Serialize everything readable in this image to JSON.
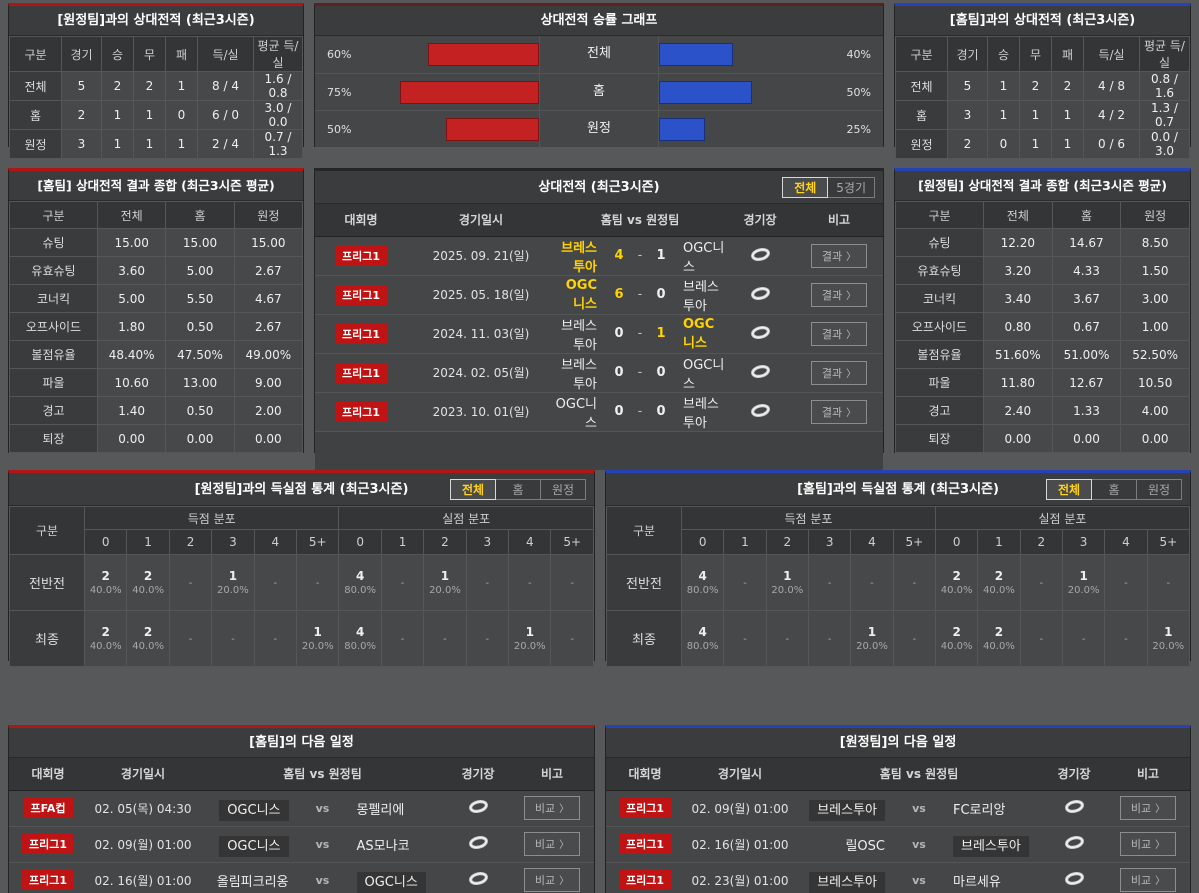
{
  "colors": {
    "red_accent": "#b01616",
    "blue_accent": "#2742b4",
    "red_bar": "#c42222",
    "blue_bar": "#2b52c8",
    "yellow": "#ffd400",
    "badge_red": "#c01414",
    "panel_bg": "#404142",
    "page_bg": "#57585a"
  },
  "h2h_away": {
    "title": "[원정팀]과의 상대전적 (최근3시즌)",
    "headers": [
      "구분",
      "경기",
      "승",
      "무",
      "패",
      "득/실",
      "평균 득/실"
    ],
    "rows": [
      {
        "label": "전체",
        "cells": [
          "5",
          "2",
          "2",
          "1",
          "8 / 4",
          "1.6 / 0.8"
        ]
      },
      {
        "label": "홈",
        "cells": [
          "2",
          "1",
          "1",
          "0",
          "6 / 0",
          "3.0 / 0.0"
        ]
      },
      {
        "label": "원정",
        "cells": [
          "3",
          "1",
          "1",
          "1",
          "2 / 4",
          "0.7 / 1.3"
        ]
      }
    ]
  },
  "winrate_chart": {
    "type": "bar",
    "title": "상대전적 승률 그래프",
    "rows": [
      {
        "label": "전체",
        "left_pct": "60%",
        "left_val": 60,
        "right_pct": "40%",
        "right_val": 40
      },
      {
        "label": "홈",
        "left_pct": "75%",
        "left_val": 75,
        "right_pct": "50%",
        "right_val": 50
      },
      {
        "label": "원정",
        "left_pct": "50%",
        "left_val": 50,
        "right_pct": "25%",
        "right_val": 25
      }
    ]
  },
  "h2h_home": {
    "title": "[홈팀]과의 상대전적 (최근3시즌)",
    "headers": [
      "구분",
      "경기",
      "승",
      "무",
      "패",
      "득/실",
      "평균 득/실"
    ],
    "rows": [
      {
        "label": "전체",
        "cells": [
          "5",
          "1",
          "2",
          "2",
          "4 / 8",
          "0.8 / 1.6"
        ]
      },
      {
        "label": "홈",
        "cells": [
          "3",
          "1",
          "1",
          "1",
          "4 / 2",
          "1.3 / 0.7"
        ]
      },
      {
        "label": "원정",
        "cells": [
          "2",
          "0",
          "1",
          "1",
          "0 / 6",
          "0.0 / 3.0"
        ]
      }
    ]
  },
  "summary_home": {
    "title": "[홈팀] 상대전적 결과 종합 (최근3시즌 평균)",
    "headers": [
      "구분",
      "전체",
      "홈",
      "원정"
    ],
    "rows": [
      {
        "label": "슈팅",
        "cells": [
          "15.00",
          "15.00",
          "15.00"
        ]
      },
      {
        "label": "유효슈팅",
        "cells": [
          "3.60",
          "5.00",
          "2.67"
        ]
      },
      {
        "label": "코너킥",
        "cells": [
          "5.00",
          "5.50",
          "4.67"
        ]
      },
      {
        "label": "오프사이드",
        "cells": [
          "1.80",
          "0.50",
          "2.67"
        ]
      },
      {
        "label": "볼점유율",
        "cells": [
          "48.40%",
          "47.50%",
          "49.00%"
        ]
      },
      {
        "label": "파울",
        "cells": [
          "10.60",
          "13.00",
          "9.00"
        ]
      },
      {
        "label": "경고",
        "cells": [
          "1.40",
          "0.50",
          "2.00"
        ]
      },
      {
        "label": "퇴장",
        "cells": [
          "0.00",
          "0.00",
          "0.00"
        ]
      }
    ]
  },
  "summary_away": {
    "title": "[원정팀] 상대전적 결과 종합 (최근3시즌 평균)",
    "headers": [
      "구분",
      "전체",
      "홈",
      "원정"
    ],
    "rows": [
      {
        "label": "슈팅",
        "cells": [
          "12.20",
          "14.67",
          "8.50"
        ]
      },
      {
        "label": "유효슈팅",
        "cells": [
          "3.20",
          "4.33",
          "1.50"
        ]
      },
      {
        "label": "코너킥",
        "cells": [
          "3.40",
          "3.67",
          "3.00"
        ]
      },
      {
        "label": "오프사이드",
        "cells": [
          "0.80",
          "0.67",
          "1.00"
        ]
      },
      {
        "label": "볼점유율",
        "cells": [
          "51.60%",
          "51.00%",
          "52.50%"
        ]
      },
      {
        "label": "파울",
        "cells": [
          "11.80",
          "12.67",
          "10.50"
        ]
      },
      {
        "label": "경고",
        "cells": [
          "2.40",
          "1.33",
          "4.00"
        ]
      },
      {
        "label": "퇴장",
        "cells": [
          "0.00",
          "0.00",
          "0.00"
        ]
      }
    ]
  },
  "matches": {
    "title": "상대전적 (최근3시즌)",
    "tabs": [
      {
        "label": "전체"
      },
      {
        "label": "5경기"
      }
    ],
    "headers": [
      "대회명",
      "경기일시",
      "홈팀  vs  원정팀",
      "경기장",
      "비고"
    ],
    "result_label": "결과",
    "chevron": "〉",
    "score_sep": "-",
    "rows": [
      {
        "league": "프리그1",
        "date": "2025. 09. 21(일)",
        "home": "브레스투아",
        "score_home": "4",
        "score_away": "1",
        "away": "OGC니스"
      },
      {
        "league": "프리그1",
        "date": "2025. 05. 18(일)",
        "home": "OGC니스",
        "score_home": "6",
        "score_away": "0",
        "away": "브레스투아"
      },
      {
        "league": "프리그1",
        "date": "2024. 11. 03(일)",
        "home": "브레스투아",
        "score_home": "0",
        "score_away": "1",
        "away": "OGC니스"
      },
      {
        "league": "프리그1",
        "date": "2024. 02. 05(월)",
        "home": "브레스투아",
        "score_home": "0",
        "score_away": "0",
        "away": "OGC니스"
      },
      {
        "league": "프리그1",
        "date": "2023. 10. 01(일)",
        "home": "OGC니스",
        "score_home": "0",
        "score_away": "0",
        "away": "브레스투아"
      }
    ]
  },
  "goals_vs_away": {
    "title": "[원정팀]과의 득실점 통계 (최근3시즌)",
    "tabs": [
      "전체",
      "홈",
      "원정"
    ],
    "corner": "구분",
    "group_scored": "득점 분포",
    "group_conceded": "실점 분포",
    "bins": [
      "0",
      "1",
      "2",
      "3",
      "4",
      "5+"
    ],
    "rows": [
      {
        "label": "전반전",
        "scored": [
          {
            "n": "2",
            "p": "40.0%"
          },
          {
            "n": "2",
            "p": "40.0%"
          },
          {
            "n": "",
            "p": "-"
          },
          {
            "n": "1",
            "p": "20.0%"
          },
          {
            "n": "",
            "p": "-"
          },
          {
            "n": "",
            "p": "-"
          }
        ],
        "conceded": [
          {
            "n": "4",
            "p": "80.0%"
          },
          {
            "n": "",
            "p": "-"
          },
          {
            "n": "1",
            "p": "20.0%"
          },
          {
            "n": "",
            "p": "-"
          },
          {
            "n": "",
            "p": "-"
          },
          {
            "n": "",
            "p": "-"
          }
        ]
      },
      {
        "label": "최종",
        "scored": [
          {
            "n": "2",
            "p": "40.0%"
          },
          {
            "n": "2",
            "p": "40.0%"
          },
          {
            "n": "",
            "p": "-"
          },
          {
            "n": "",
            "p": "-"
          },
          {
            "n": "",
            "p": "-"
          },
          {
            "n": "1",
            "p": "20.0%"
          }
        ],
        "conceded": [
          {
            "n": "4",
            "p": "80.0%"
          },
          {
            "n": "",
            "p": "-"
          },
          {
            "n": "",
            "p": "-"
          },
          {
            "n": "",
            "p": "-"
          },
          {
            "n": "1",
            "p": "20.0%"
          },
          {
            "n": "",
            "p": "-"
          }
        ]
      }
    ]
  },
  "goals_vs_home": {
    "title": "[홈팀]과의 득실점 통계 (최근3시즌)",
    "tabs": [
      "전체",
      "홈",
      "원정"
    ],
    "corner": "구분",
    "group_scored": "득점 분포",
    "group_conceded": "실점 분포",
    "bins": [
      "0",
      "1",
      "2",
      "3",
      "4",
      "5+"
    ],
    "rows": [
      {
        "label": "전반전",
        "scored": [
          {
            "n": "4",
            "p": "80.0%"
          },
          {
            "n": "",
            "p": "-"
          },
          {
            "n": "1",
            "p": "20.0%"
          },
          {
            "n": "",
            "p": "-"
          },
          {
            "n": "",
            "p": "-"
          },
          {
            "n": "",
            "p": "-"
          }
        ],
        "conceded": [
          {
            "n": "2",
            "p": "40.0%"
          },
          {
            "n": "2",
            "p": "40.0%"
          },
          {
            "n": "",
            "p": "-"
          },
          {
            "n": "1",
            "p": "20.0%"
          },
          {
            "n": "",
            "p": "-"
          },
          {
            "n": "",
            "p": "-"
          }
        ]
      },
      {
        "label": "최종",
        "scored": [
          {
            "n": "4",
            "p": "80.0%"
          },
          {
            "n": "",
            "p": "-"
          },
          {
            "n": "",
            "p": "-"
          },
          {
            "n": "",
            "p": "-"
          },
          {
            "n": "1",
            "p": "20.0%"
          },
          {
            "n": "",
            "p": "-"
          }
        ],
        "conceded": [
          {
            "n": "2",
            "p": "40.0%"
          },
          {
            "n": "2",
            "p": "40.0%"
          },
          {
            "n": "",
            "p": "-"
          },
          {
            "n": "",
            "p": "-"
          },
          {
            "n": "",
            "p": "-"
          },
          {
            "n": "1",
            "p": "20.0%"
          }
        ]
      }
    ]
  },
  "schedule_home": {
    "title": "[홈팀]의 다음 일정",
    "headers": [
      "대회명",
      "경기일시",
      "홈팀  vs  원정팀",
      "경기장",
      "비고"
    ],
    "vs_label": "vs",
    "compare_label": "비교",
    "chevron": "〉",
    "rows": [
      {
        "league": "프FA컵",
        "date": "02. 05(목) 04:30",
        "home": "OGC니스",
        "away": "몽펠리에"
      },
      {
        "league": "프리그1",
        "date": "02. 09(월) 01:00",
        "home": "OGC니스",
        "away": "AS모나코"
      },
      {
        "league": "프리그1",
        "date": "02. 16(월) 01:00",
        "home": "올림피크리옹",
        "away": "OGC니스"
      }
    ]
  },
  "schedule_away": {
    "title": "[원정팀]의 다음 일정",
    "headers": [
      "대회명",
      "경기일시",
      "홈팀  vs  원정팀",
      "경기장",
      "비고"
    ],
    "vs_label": "vs",
    "compare_label": "비교",
    "chevron": "〉",
    "rows": [
      {
        "league": "프리그1",
        "date": "02. 09(월) 01:00",
        "home": "브레스투아",
        "away": "FC로리앙"
      },
      {
        "league": "프리그1",
        "date": "02. 16(월) 01:00",
        "home": "릴OSC",
        "away": "브레스투아"
      },
      {
        "league": "프리그1",
        "date": "02. 23(월) 01:00",
        "home": "브레스투아",
        "away": "마르세유"
      }
    ]
  }
}
